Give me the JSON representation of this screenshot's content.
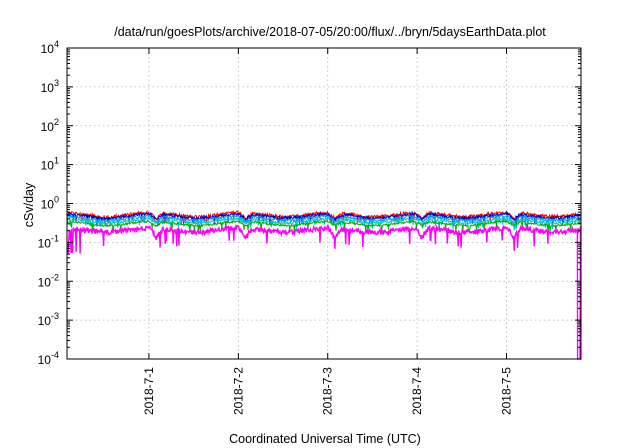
{
  "chart_data": {
    "type": "line",
    "title": "/data/run/goesPlots/archive/2018-07-05/20:00/flux/../bryn/5daysEarthData.plot",
    "xlabel": "Coordinated Universal Time (UTC)",
    "ylabel": "cSv/day",
    "yscale": "log",
    "ylim": [
      0.0001,
      10000
    ],
    "xlim": [
      "2018-06-30 02:00",
      "2018-07-05 20:00"
    ],
    "grid": true,
    "x_ticks": [
      "2018-7-1",
      "2018-7-2",
      "2018-7-3",
      "2018-7-4",
      "2018-7-5"
    ],
    "y_ticks": [
      {
        "base": "10",
        "exp": "-4"
      },
      {
        "base": "10",
        "exp": "-3"
      },
      {
        "base": "10",
        "exp": "-2"
      },
      {
        "base": "10",
        "exp": "-1"
      },
      {
        "base": "10",
        "exp": "0"
      },
      {
        "base": "10",
        "exp": "1"
      },
      {
        "base": "10",
        "exp": "2"
      },
      {
        "base": "10",
        "exp": "3"
      },
      {
        "base": "10",
        "exp": "4"
      }
    ],
    "series": [
      {
        "color": "#ff0000",
        "level": 0.52,
        "spread": 0.2,
        "dip": 0.7
      },
      {
        "color": "#0000c8",
        "level": 0.48,
        "spread": 0.18,
        "dip": 0.72
      },
      {
        "color": "#00a0ff",
        "level": 0.42,
        "spread": 0.16,
        "dip": 0.72
      },
      {
        "color": "#00c8c8",
        "level": 0.36,
        "spread": 0.14,
        "dip": 0.74
      },
      {
        "color": "#00b000",
        "level": 0.31,
        "spread": 0.12,
        "dip": 0.76
      },
      {
        "color": "#ff00ff",
        "level": 0.21,
        "spread": 0.3,
        "dip": 0.55
      }
    ],
    "x_tick_days": [
      1,
      2,
      3,
      4,
      5
    ],
    "minimum_value": 0.0001
  }
}
